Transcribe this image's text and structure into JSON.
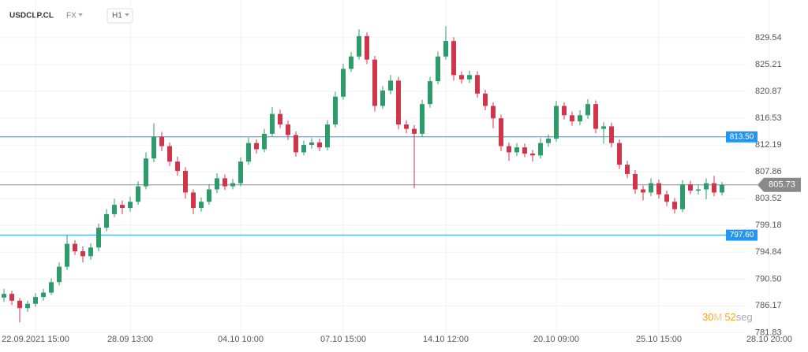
{
  "chart_data": {
    "type": "candlestick",
    "header": {
      "symbol": "USDCLP.CL",
      "market": "FX",
      "timeframe": "H1"
    },
    "categories": [
      null,
      null,
      null,
      null,
      "22.09.2021 15:00",
      null,
      null,
      null,
      null,
      null,
      null,
      null,
      null,
      null,
      null,
      null,
      "28.09 13:00",
      null,
      null,
      null,
      null,
      null,
      null,
      null,
      null,
      null,
      null,
      null,
      null,
      null,
      "04.10 10:00",
      null,
      null,
      null,
      null,
      null,
      null,
      null,
      null,
      null,
      null,
      null,
      null,
      "07.10 15:00",
      null,
      null,
      null,
      null,
      null,
      null,
      null,
      null,
      null,
      null,
      null,
      null,
      "14.10 12:00",
      null,
      null,
      null,
      null,
      null,
      null,
      null,
      null,
      null,
      null,
      null,
      null,
      null,
      "20.10 09:00",
      null,
      null,
      null,
      null,
      null,
      null,
      null,
      null,
      null,
      null,
      null,
      null,
      "25.10 15:00",
      null,
      null,
      null,
      null,
      null,
      null,
      null,
      null,
      null,
      null,
      null,
      null,
      null,
      "28.10 20:00"
    ],
    "open": [
      787.5,
      788.1,
      787.0,
      785.8,
      786.5,
      787.6,
      788.3,
      790.0,
      792.5,
      796.2,
      795.0,
      794.2,
      795.6,
      798.8,
      801.0,
      802.5,
      802.0,
      803.0,
      805.5,
      810.0,
      813.5,
      812.0,
      809.5,
      808.0,
      804.5,
      802.0,
      803.0,
      805.0,
      806.8,
      805.5,
      806.0,
      809.5,
      812.5,
      811.5,
      814.0,
      817.2,
      815.5,
      813.8,
      811.0,
      812.2,
      812.6,
      811.8,
      815.5,
      820.0,
      824.5,
      826.5,
      829.8,
      826.0,
      818.5,
      821.0,
      822.6,
      815.5,
      814.8,
      814.0,
      818.8,
      822.5,
      826.5,
      829.0,
      823.5,
      822.8,
      823.5,
      820.5,
      818.5,
      816.5,
      812.0,
      811.0,
      811.8,
      810.8,
      810.5,
      812.5,
      813.2,
      818.5,
      817.0,
      816.0,
      817.0,
      818.8,
      814.8,
      815.2,
      812.5,
      809.0,
      807.5,
      805.0,
      804.5,
      806.0,
      804.2,
      803.0,
      801.8,
      805.8,
      804.8,
      805.0,
      806.0,
      804.5,
      null,
      null,
      null,
      null,
      null,
      null
    ],
    "high": [
      788.9,
      788.6,
      787.4,
      787.0,
      788.2,
      788.9,
      790.6,
      793.2,
      797.6,
      796.8,
      795.8,
      796.3,
      799.5,
      801.8,
      803.5,
      803.2,
      803.8,
      806.3,
      811.0,
      815.7,
      814.3,
      812.6,
      810.3,
      808.6,
      805.0,
      803.7,
      805.8,
      807.6,
      807.4,
      806.7,
      810.2,
      813.4,
      813.1,
      814.8,
      818.3,
      817.9,
      816.1,
      814.4,
      812.9,
      813.3,
      813.2,
      816.2,
      820.8,
      825.3,
      827.2,
      830.9,
      830.4,
      826.6,
      821.7,
      823.5,
      823.2,
      816.2,
      815.4,
      819.5,
      823.2,
      827.3,
      831.4,
      829.6,
      824.1,
      824.2,
      824.1,
      821.1,
      819.1,
      817.1,
      812.6,
      812.5,
      812.4,
      811.4,
      813.3,
      813.9,
      819.3,
      819.1,
      817.6,
      817.8,
      819.6,
      819.4,
      815.9,
      815.8,
      813.1,
      809.6,
      808.1,
      805.6,
      806.8,
      806.6,
      804.8,
      803.6,
      806.5,
      806.4,
      805.7,
      806.8,
      807.2,
      806.2,
      null,
      null,
      null,
      null,
      null,
      null
    ],
    "low": [
      786.8,
      786.3,
      783.5,
      785.2,
      786.0,
      787.0,
      787.9,
      789.5,
      792.0,
      794.4,
      793.2,
      793.6,
      795.0,
      798.2,
      800.5,
      801.0,
      801.4,
      802.5,
      805.0,
      809.4,
      811.2,
      808.8,
      807.2,
      803.5,
      801.0,
      801.4,
      802.5,
      804.4,
      804.9,
      805.0,
      805.5,
      809.0,
      810.8,
      811.0,
      813.6,
      814.9,
      813.0,
      810.3,
      810.5,
      811.6,
      811.2,
      811.3,
      815.0,
      819.5,
      824.0,
      826.0,
      825.3,
      817.6,
      818.0,
      820.4,
      814.7,
      814.1,
      805.2,
      813.5,
      818.2,
      822.0,
      826.0,
      822.6,
      822.1,
      822.2,
      819.8,
      817.8,
      814.9,
      811.2,
      809.6,
      810.4,
      810.2,
      809.5,
      810.0,
      811.9,
      812.7,
      816.3,
      815.3,
      815.4,
      816.4,
      814.1,
      812.4,
      811.8,
      808.3,
      806.8,
      804.3,
      803.2,
      803.9,
      803.5,
      802.3,
      801.1,
      801.3,
      804.2,
      804.2,
      803.4,
      803.9,
      804.0,
      null,
      null,
      null,
      null,
      null,
      null
    ],
    "close": [
      788.1,
      787.0,
      785.8,
      786.5,
      787.6,
      788.3,
      790.0,
      792.5,
      796.2,
      795.0,
      794.2,
      795.6,
      798.8,
      801.0,
      802.5,
      802.0,
      803.0,
      805.5,
      810.0,
      813.5,
      812.0,
      809.5,
      808.0,
      804.5,
      802.0,
      803.0,
      805.0,
      806.8,
      805.5,
      806.0,
      809.5,
      812.5,
      811.5,
      814.0,
      817.2,
      815.5,
      813.8,
      811.0,
      812.2,
      812.6,
      811.8,
      815.5,
      820.0,
      824.5,
      826.5,
      829.8,
      826.0,
      818.5,
      821.0,
      822.6,
      815.5,
      814.8,
      814.0,
      818.8,
      822.5,
      826.5,
      829.0,
      823.5,
      822.8,
      823.5,
      820.5,
      818.5,
      816.5,
      812.0,
      811.0,
      811.8,
      810.8,
      810.5,
      812.5,
      813.2,
      818.5,
      817.0,
      816.0,
      817.0,
      818.8,
      814.8,
      815.2,
      812.5,
      809.0,
      807.5,
      805.0,
      804.5,
      806.0,
      804.2,
      803.0,
      801.8,
      805.8,
      804.8,
      805.0,
      806.0,
      804.5,
      805.73,
      null,
      null,
      null,
      null,
      null,
      null
    ],
    "up_color": "#2e9c6a",
    "down_color": "#d0364b",
    "ylim": [
      781.5,
      835
    ],
    "yticks": [
      829.54,
      825.21,
      820.87,
      816.53,
      812.19,
      807.86,
      803.52,
      799.18,
      794.84,
      {
        "value": 790.5,
        "label": "790.50"
      },
      786.17,
      781.83
    ],
    "grid": true,
    "levels": [
      {
        "value": 813.5,
        "label": "813.50",
        "color": "#2196f3"
      },
      {
        "value": 797.6,
        "label": "797.60",
        "color": "#2196f3"
      }
    ],
    "last_price": {
      "value": 805.73,
      "color": "#8a8a8a"
    },
    "timer": {
      "minutes": "30",
      "minutes_unit": "M",
      "seconds": "52",
      "seconds_unit": "seg"
    }
  }
}
